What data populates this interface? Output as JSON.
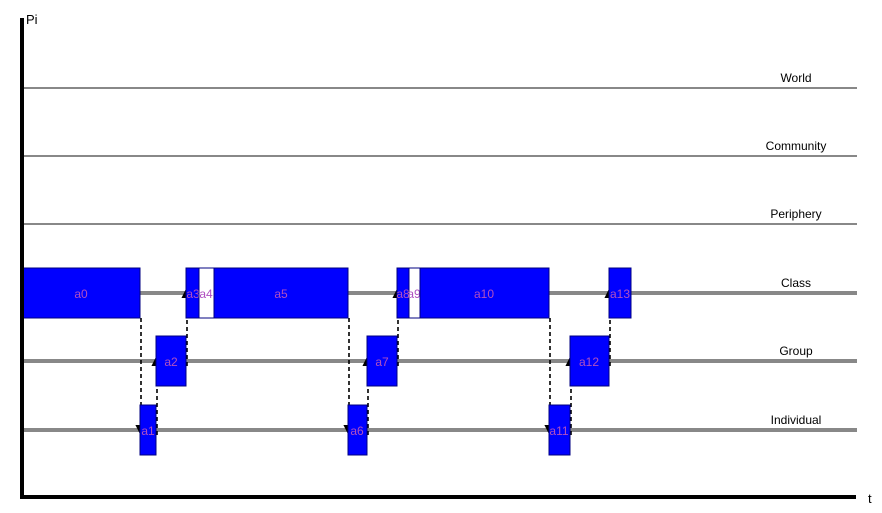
{
  "axes": {
    "y_label": "Pi",
    "x_label": "t"
  },
  "levels": [
    {
      "id": "world",
      "label": "World",
      "weight": "thin"
    },
    {
      "id": "community",
      "label": "Community",
      "weight": "thin"
    },
    {
      "id": "periphery",
      "label": "Periphery",
      "weight": "thin"
    },
    {
      "id": "class",
      "label": "Class",
      "weight": "thick"
    },
    {
      "id": "group",
      "label": "Group",
      "weight": "thick"
    },
    {
      "id": "individual",
      "label": "Individual",
      "weight": "thick"
    }
  ],
  "activities": [
    {
      "id": "a0",
      "label": "a0",
      "level": "class",
      "fill": "#0000ff"
    },
    {
      "id": "a1",
      "label": "a1",
      "level": "individual",
      "fill": "#0000ff"
    },
    {
      "id": "a2",
      "label": "a2",
      "level": "group",
      "fill": "#0000ff"
    },
    {
      "id": "a3",
      "label": "a3",
      "level": "class",
      "fill": "#0000ff"
    },
    {
      "id": "a4",
      "label": "a4",
      "level": "class",
      "fill": "#ffffff"
    },
    {
      "id": "a5",
      "label": "a5",
      "level": "class",
      "fill": "#0000ff"
    },
    {
      "id": "a6",
      "label": "a6",
      "level": "individual",
      "fill": "#0000ff"
    },
    {
      "id": "a7",
      "label": "a7",
      "level": "group",
      "fill": "#0000ff"
    },
    {
      "id": "a8",
      "label": "a8",
      "level": "class",
      "fill": "#0000ff"
    },
    {
      "id": "a9",
      "label": "a9",
      "level": "class",
      "fill": "#ffffff"
    },
    {
      "id": "a10",
      "label": "a10",
      "level": "class",
      "fill": "#0000ff"
    },
    {
      "id": "a11",
      "label": "a11",
      "level": "individual",
      "fill": "#0000ff"
    },
    {
      "id": "a12",
      "label": "a12",
      "level": "group",
      "fill": "#0000ff"
    },
    {
      "id": "a13",
      "label": "a13",
      "level": "class",
      "fill": "#0000ff"
    }
  ],
  "transitions": [
    {
      "from": "a0",
      "to": "a1"
    },
    {
      "from": "a1",
      "to": "a2"
    },
    {
      "from": "a2",
      "to": "a3"
    },
    {
      "from": "a5",
      "to": "a6"
    },
    {
      "from": "a6",
      "to": "a7"
    },
    {
      "from": "a7",
      "to": "a8"
    },
    {
      "from": "a10",
      "to": "a11"
    },
    {
      "from": "a11",
      "to": "a12"
    },
    {
      "from": "a12",
      "to": "a13"
    }
  ],
  "colors": {
    "activity_fill": "#0000ff",
    "activity_label": "#b050c0",
    "level_line": "#888888",
    "axis": "#000000"
  }
}
